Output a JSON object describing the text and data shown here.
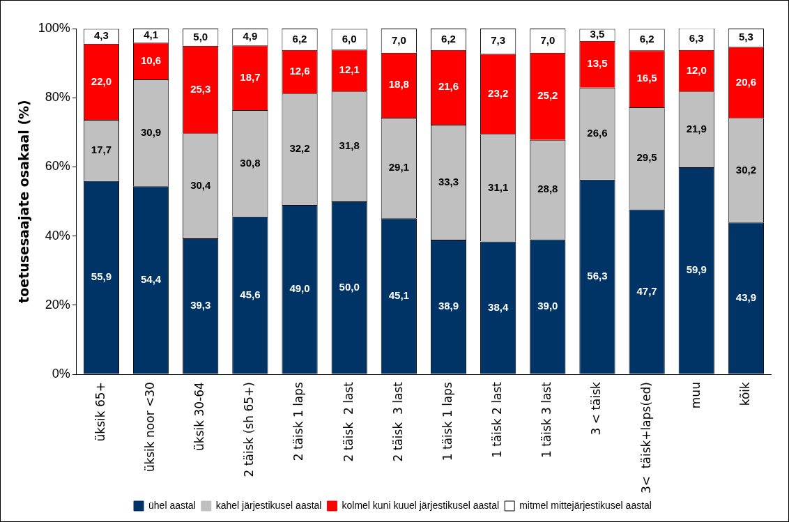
{
  "chart_data": {
    "type": "bar",
    "stacked": true,
    "ylabel": "toetusesaajate osakaal (%)",
    "categories": [
      "üksik 65+",
      "üksik noor <30",
      "üksik 30-64",
      "2 täisk (sh 65+)",
      "2 täisk 1 laps",
      "2 täisk  2 last",
      "2 täisk  3 last",
      "1 täisk 1 laps",
      "1 täisk 2 last",
      "1 täisk 3 last",
      "3 < täisk",
      "3<  täisk+laps(ed)",
      "muu",
      "kõik"
    ],
    "series": [
      {
        "name": "ühel aastal",
        "color": "#003366",
        "values": [
          55.9,
          54.4,
          39.3,
          45.6,
          49.0,
          50.0,
          45.1,
          38.9,
          38.4,
          39.0,
          56.3,
          47.7,
          59.9,
          43.9
        ],
        "value_labels": [
          "55,9",
          "54,4",
          "39,3",
          "45,6",
          "49,0",
          "50,0",
          "45,1",
          "38,9",
          "38,4",
          "39,0",
          "56,3",
          "47,7",
          "59,9",
          "43,9"
        ]
      },
      {
        "name": "kahel järjestikusel aastal",
        "color": "#c0c0c0",
        "values": [
          17.7,
          30.9,
          30.4,
          30.8,
          32.2,
          31.8,
          29.1,
          33.3,
          31.1,
          28.8,
          26.6,
          29.5,
          21.9,
          30.2
        ],
        "value_labels": [
          "17,7",
          "30,9",
          "30,4",
          "30,8",
          "32,2",
          "31,8",
          "29,1",
          "33,3",
          "31,1",
          "28,8",
          "26,6",
          "29,5",
          "21,9",
          "30,2"
        ]
      },
      {
        "name": "kolmel kuni kuuel järjestikusel aastal",
        "color": "#ff0000",
        "values": [
          22.0,
          10.6,
          25.3,
          18.7,
          12.6,
          12.1,
          18.8,
          21.6,
          23.2,
          25.2,
          13.5,
          16.5,
          12.0,
          20.6
        ],
        "value_labels": [
          "22,0",
          "10,6",
          "25,3",
          "18,7",
          "12,6",
          "12,1",
          "18,8",
          "21,6",
          "23,2",
          "25,2",
          "13,5",
          "16,5",
          "12,0",
          "20,6"
        ]
      },
      {
        "name": "mitmel mittejärjestikusel aastal",
        "color": "#ffffff",
        "values": [
          4.3,
          4.1,
          5.0,
          4.9,
          6.2,
          6.0,
          7.0,
          6.2,
          7.3,
          7.0,
          3.5,
          6.2,
          6.3,
          5.3
        ],
        "value_labels": [
          "4,3",
          "4,1",
          "5,0",
          "4,9",
          "6,2",
          "6,0",
          "7,0",
          "6,2",
          "7,3",
          "7,0",
          "3,5",
          "6,2",
          "6,3",
          "5,3"
        ]
      }
    ],
    "ylim": [
      0,
      100
    ],
    "yticks": [
      {
        "value": 0,
        "label": "0%"
      },
      {
        "value": 20,
        "label": "20%"
      },
      {
        "value": 40,
        "label": "40%"
      },
      {
        "value": 60,
        "label": "60%"
      },
      {
        "value": 80,
        "label": "80%"
      },
      {
        "value": 100,
        "label": "100%"
      }
    ],
    "grid": false,
    "legend": "bottom"
  }
}
